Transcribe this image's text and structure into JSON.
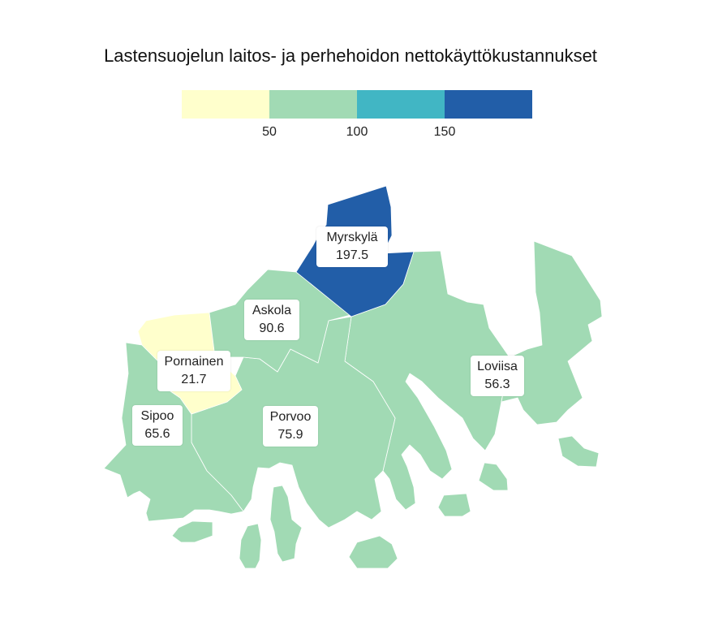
{
  "title": "Lastensuojelun laitos- ja perhehoidon nettokäyttökustannukset",
  "legend": {
    "colors": [
      "#ffffcc",
      "#a1dab4",
      "#41b6c4",
      "#225ea8"
    ],
    "ticks": [
      "50",
      "100",
      "150"
    ]
  },
  "municipalities": {
    "myrskyla": {
      "name": "Myrskylä",
      "value": "197.5",
      "color": "#225ea8"
    },
    "askola": {
      "name": "Askola",
      "value": "90.6",
      "color": "#a1dab4"
    },
    "pornainen": {
      "name": "Pornainen",
      "value": "21.7",
      "color": "#ffffcc"
    },
    "sipoo": {
      "name": "Sipoo",
      "value": "65.6",
      "color": "#a1dab4"
    },
    "porvoo": {
      "name": "Porvoo",
      "value": "75.9",
      "color": "#a1dab4"
    },
    "loviisa": {
      "name": "Loviisa",
      "value": "56.3",
      "color": "#a1dab4"
    }
  },
  "colors": {
    "border": "#ffffff",
    "text": "#222222"
  }
}
